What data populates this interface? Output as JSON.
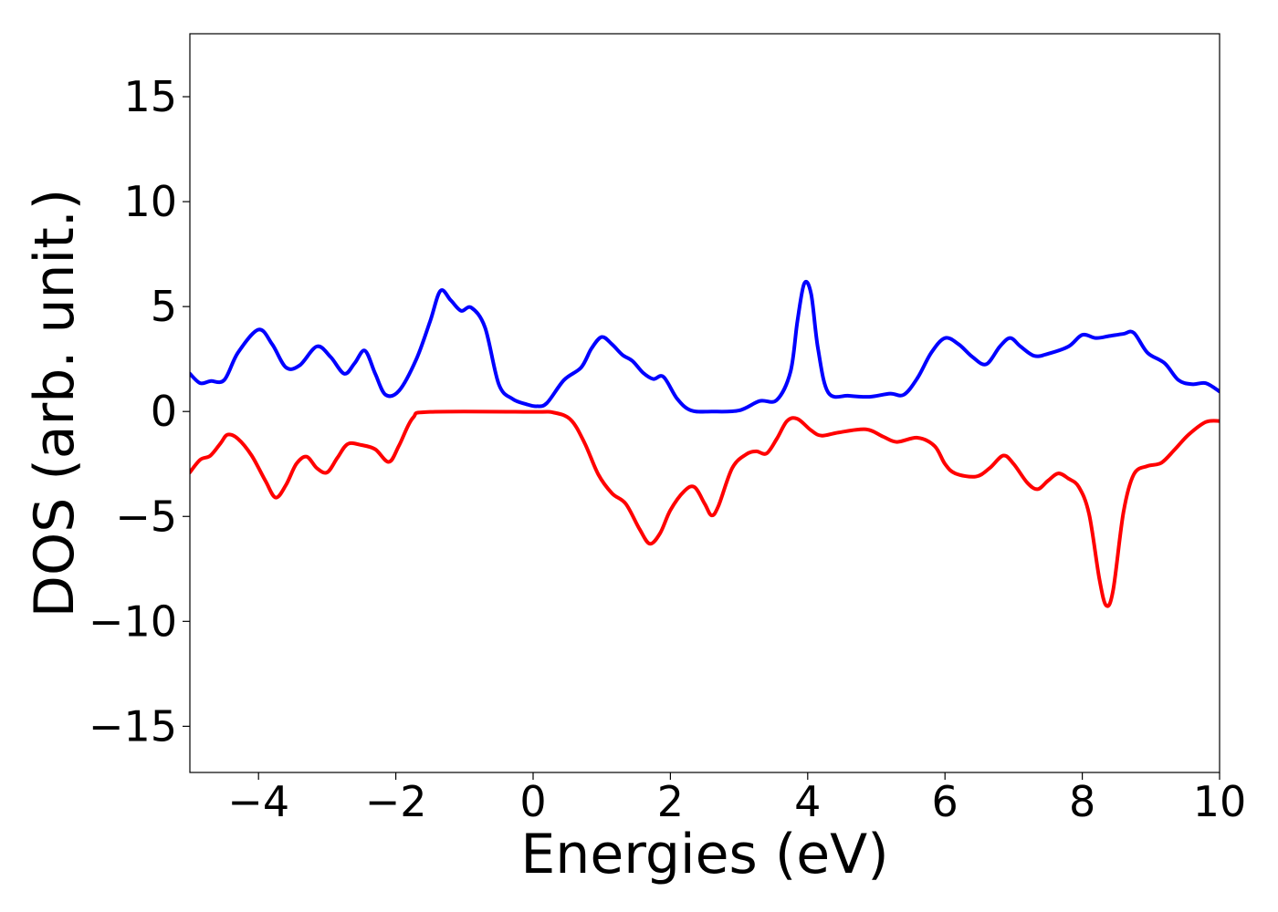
{
  "chart_data": {
    "type": "line",
    "title": "",
    "xlabel": "Energies (eV)",
    "ylabel": "DOS (arb. unit.)",
    "xlim": [
      -5,
      10
    ],
    "ylim": [
      -17.2,
      18.0
    ],
    "xticks": [
      -4,
      -2,
      0,
      2,
      4,
      6,
      8,
      10
    ],
    "xtick_labels": [
      "−4",
      "−2",
      "0",
      "2",
      "4",
      "6",
      "8",
      "10"
    ],
    "yticks": [
      15,
      10,
      5,
      0,
      -5,
      -10,
      -15
    ],
    "ytick_labels": [
      "15",
      "10",
      "5",
      "0",
      "−5",
      "−10",
      "−15"
    ],
    "grid": false,
    "legend": "none",
    "series": [
      {
        "color": "#0000ff",
        "points": [
          [
            -5.0,
            1.8
          ],
          [
            -4.85,
            1.35
          ],
          [
            -4.7,
            1.45
          ],
          [
            -4.5,
            1.5
          ],
          [
            -4.3,
            2.8
          ],
          [
            -4.0,
            3.9
          ],
          [
            -3.8,
            3.2
          ],
          [
            -3.6,
            2.1
          ],
          [
            -3.4,
            2.2
          ],
          [
            -3.15,
            3.1
          ],
          [
            -2.95,
            2.6
          ],
          [
            -2.75,
            1.8
          ],
          [
            -2.6,
            2.3
          ],
          [
            -2.45,
            2.9
          ],
          [
            -2.3,
            1.8
          ],
          [
            -2.15,
            0.8
          ],
          [
            -1.95,
            1.0
          ],
          [
            -1.7,
            2.5
          ],
          [
            -1.5,
            4.3
          ],
          [
            -1.35,
            5.75
          ],
          [
            -1.2,
            5.3
          ],
          [
            -1.05,
            4.8
          ],
          [
            -0.9,
            4.95
          ],
          [
            -0.7,
            4.0
          ],
          [
            -0.5,
            1.3
          ],
          [
            -0.3,
            0.6
          ],
          [
            -0.1,
            0.35
          ],
          [
            0.05,
            0.25
          ],
          [
            0.2,
            0.4
          ],
          [
            0.45,
            1.5
          ],
          [
            0.7,
            2.1
          ],
          [
            0.85,
            3.0
          ],
          [
            1.0,
            3.55
          ],
          [
            1.15,
            3.2
          ],
          [
            1.3,
            2.7
          ],
          [
            1.45,
            2.4
          ],
          [
            1.6,
            1.85
          ],
          [
            1.75,
            1.55
          ],
          [
            1.9,
            1.65
          ],
          [
            2.1,
            0.6
          ],
          [
            2.3,
            0.05
          ],
          [
            2.6,
            0.0
          ],
          [
            3.0,
            0.05
          ],
          [
            3.3,
            0.5
          ],
          [
            3.55,
            0.55
          ],
          [
            3.75,
            1.9
          ],
          [
            3.85,
            4.3
          ],
          [
            3.95,
            6.1
          ],
          [
            4.05,
            5.6
          ],
          [
            4.15,
            3.0
          ],
          [
            4.3,
            0.9
          ],
          [
            4.6,
            0.75
          ],
          [
            4.9,
            0.7
          ],
          [
            5.2,
            0.85
          ],
          [
            5.4,
            0.8
          ],
          [
            5.6,
            1.6
          ],
          [
            5.8,
            2.8
          ],
          [
            6.0,
            3.5
          ],
          [
            6.2,
            3.2
          ],
          [
            6.4,
            2.6
          ],
          [
            6.6,
            2.25
          ],
          [
            6.8,
            3.1
          ],
          [
            6.95,
            3.5
          ],
          [
            7.1,
            3.1
          ],
          [
            7.3,
            2.65
          ],
          [
            7.5,
            2.75
          ],
          [
            7.8,
            3.1
          ],
          [
            8.0,
            3.65
          ],
          [
            8.2,
            3.5
          ],
          [
            8.4,
            3.6
          ],
          [
            8.6,
            3.7
          ],
          [
            8.75,
            3.75
          ],
          [
            8.95,
            2.8
          ],
          [
            9.2,
            2.3
          ],
          [
            9.4,
            1.5
          ],
          [
            9.6,
            1.3
          ],
          [
            9.8,
            1.35
          ],
          [
            10.0,
            0.95
          ]
        ]
      },
      {
        "color": "#ff0000",
        "points": [
          [
            -5.0,
            -2.9
          ],
          [
            -4.85,
            -2.3
          ],
          [
            -4.7,
            -2.1
          ],
          [
            -4.55,
            -1.5
          ],
          [
            -4.45,
            -1.1
          ],
          [
            -4.3,
            -1.3
          ],
          [
            -4.1,
            -2.1
          ],
          [
            -3.9,
            -3.3
          ],
          [
            -3.75,
            -4.1
          ],
          [
            -3.6,
            -3.5
          ],
          [
            -3.45,
            -2.5
          ],
          [
            -3.3,
            -2.15
          ],
          [
            -3.15,
            -2.7
          ],
          [
            -3.0,
            -2.9
          ],
          [
            -2.85,
            -2.2
          ],
          [
            -2.7,
            -1.55
          ],
          [
            -2.5,
            -1.6
          ],
          [
            -2.3,
            -1.8
          ],
          [
            -2.1,
            -2.4
          ],
          [
            -1.95,
            -1.6
          ],
          [
            -1.75,
            -0.3
          ],
          [
            -1.5,
            -0.02
          ],
          [
            0.0,
            -0.02
          ],
          [
            0.3,
            -0.05
          ],
          [
            0.55,
            -0.4
          ],
          [
            0.75,
            -1.5
          ],
          [
            0.95,
            -3.0
          ],
          [
            1.15,
            -3.9
          ],
          [
            1.35,
            -4.4
          ],
          [
            1.55,
            -5.6
          ],
          [
            1.7,
            -6.3
          ],
          [
            1.85,
            -5.8
          ],
          [
            2.0,
            -4.7
          ],
          [
            2.2,
            -3.8
          ],
          [
            2.35,
            -3.6
          ],
          [
            2.5,
            -4.4
          ],
          [
            2.6,
            -4.95
          ],
          [
            2.7,
            -4.5
          ],
          [
            2.9,
            -2.7
          ],
          [
            3.1,
            -2.05
          ],
          [
            3.25,
            -1.9
          ],
          [
            3.4,
            -2.0
          ],
          [
            3.55,
            -1.3
          ],
          [
            3.7,
            -0.45
          ],
          [
            3.85,
            -0.35
          ],
          [
            4.05,
            -0.9
          ],
          [
            4.2,
            -1.15
          ],
          [
            4.45,
            -1.0
          ],
          [
            4.85,
            -0.85
          ],
          [
            5.1,
            -1.2
          ],
          [
            5.3,
            -1.45
          ],
          [
            5.6,
            -1.25
          ],
          [
            5.85,
            -1.65
          ],
          [
            6.0,
            -2.5
          ],
          [
            6.15,
            -2.95
          ],
          [
            6.45,
            -3.1
          ],
          [
            6.65,
            -2.7
          ],
          [
            6.85,
            -2.1
          ],
          [
            7.0,
            -2.5
          ],
          [
            7.2,
            -3.4
          ],
          [
            7.35,
            -3.7
          ],
          [
            7.5,
            -3.3
          ],
          [
            7.65,
            -2.95
          ],
          [
            7.8,
            -3.2
          ],
          [
            7.95,
            -3.6
          ],
          [
            8.1,
            -4.9
          ],
          [
            8.25,
            -8.0
          ],
          [
            8.35,
            -9.25
          ],
          [
            8.45,
            -8.5
          ],
          [
            8.6,
            -4.8
          ],
          [
            8.75,
            -3.0
          ],
          [
            8.95,
            -2.6
          ],
          [
            9.15,
            -2.45
          ],
          [
            9.35,
            -1.8
          ],
          [
            9.55,
            -1.1
          ],
          [
            9.8,
            -0.5
          ],
          [
            10.0,
            -0.45
          ]
        ]
      }
    ]
  }
}
